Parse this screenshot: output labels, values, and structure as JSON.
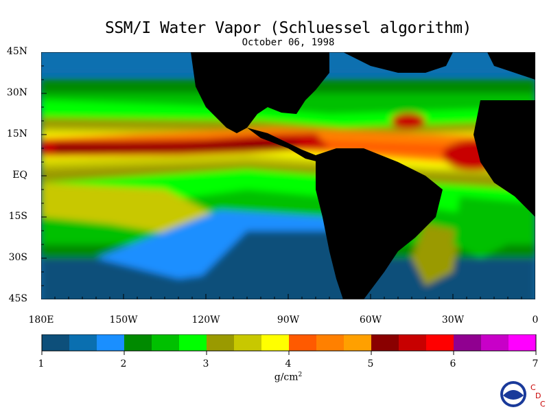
{
  "title": "SSM/I Water Vapor (Schluessel algorithm)",
  "subtitle": "October 06, 1998",
  "lat_labels": [
    "45N",
    "30N",
    "15N",
    "EQ",
    "15S",
    "30S",
    "45S"
  ],
  "lon_labels": [
    "180E",
    "150W",
    "120W",
    "90W",
    "60W",
    "30W",
    "0"
  ],
  "colorbar": {
    "ticks": [
      "1",
      "2",
      "3",
      "4",
      "5",
      "6",
      "7"
    ],
    "units_base": "g/cm",
    "units_sup": "2",
    "colors": [
      "#0d4f7a",
      "#0a6fb0",
      "#1a8fff",
      "#008a00",
      "#00c000",
      "#00ff00",
      "#9a9a00",
      "#c8c800",
      "#ffff00",
      "#ff5a00",
      "#ff8000",
      "#ffa000",
      "#8a0000",
      "#c80000",
      "#ff0000",
      "#900090",
      "#c800c8",
      "#ff00ff"
    ]
  },
  "logo": {
    "agency": "NOAA",
    "letters": [
      "C",
      "D",
      "C"
    ]
  }
}
